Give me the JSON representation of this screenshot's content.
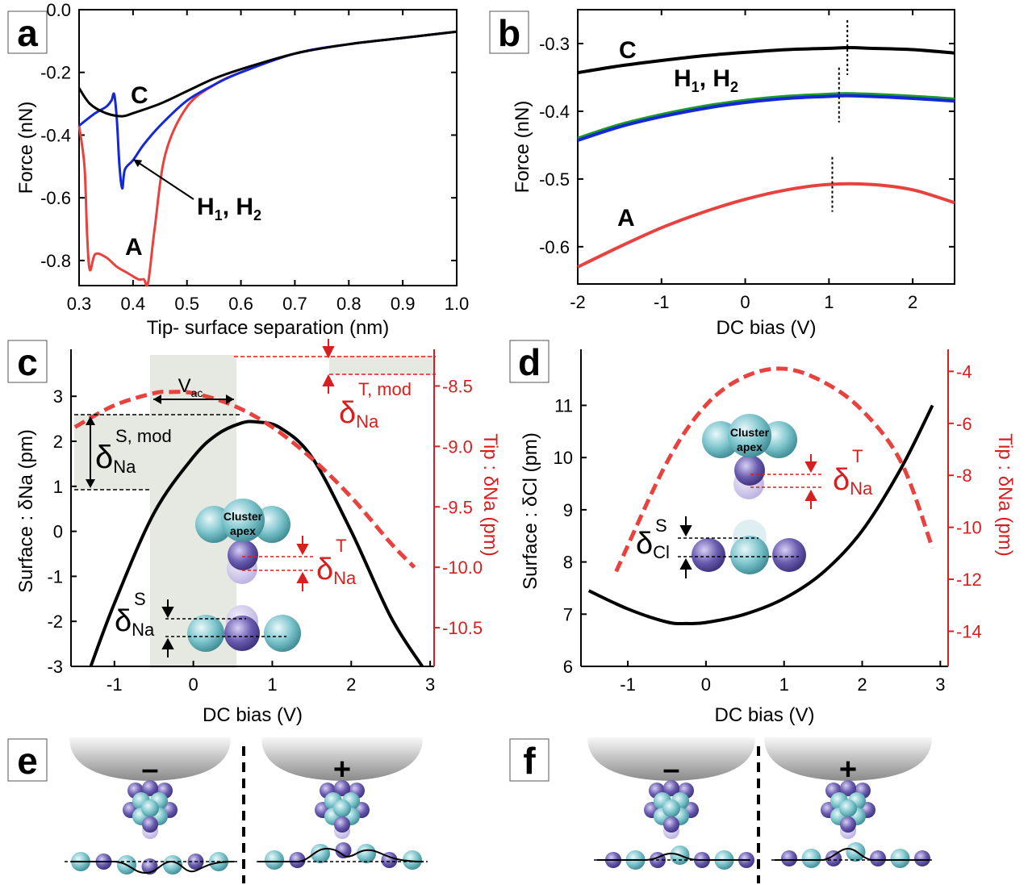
{
  "panels": {
    "a": {
      "label": "a"
    },
    "b": {
      "label": "b"
    },
    "c": {
      "label": "c"
    },
    "d": {
      "label": "d"
    },
    "e": {
      "label": "e"
    },
    "f": {
      "label": "f"
    }
  },
  "annotations": {
    "a": {
      "C": "C",
      "A": "A",
      "H": "H",
      "one": "1",
      "comma": ", ",
      "two": "2"
    },
    "b": {
      "C": "C",
      "A": "A",
      "H": "H",
      "one": "1",
      "comma": ", ",
      "two": "2"
    },
    "c": {
      "vac_v": "V",
      "vac_sub": "ac",
      "delta": "δ",
      "na": "Na",
      "s_mod": "S, mod",
      "t_mod": "T, mod",
      "t": "T",
      "s": "S",
      "cluster1": "Cluster",
      "cluster2": "apex"
    },
    "d": {
      "delta": "δ",
      "na": "Na",
      "cl": "Cl",
      "t": "T",
      "s": "S",
      "cluster1": "Cluster",
      "cluster2": "apex"
    },
    "e": {
      "minus": "–",
      "plus": "+"
    },
    "f": {
      "minus": "–",
      "plus": "+"
    }
  },
  "colors": {
    "black": "#000000",
    "blue": "#1428d8",
    "red": "#e8423f",
    "green": "#1e9a2a",
    "axis_red": "#d81f1f",
    "shade": "#e6e8e2",
    "teal": "#7cc4cc",
    "purple": "#6a5cb0"
  },
  "chart_data": [
    {
      "panel": "a",
      "type": "line",
      "xlabel": "Tip- surface separation (nm)",
      "ylabel": "Force (nN)",
      "xlim": [
        0.3,
        1.0
      ],
      "ylim": [
        -0.88,
        0.0
      ],
      "xticks": [
        "0.3",
        "0.4",
        "0.5",
        "0.6",
        "0.7",
        "0.8",
        "0.9",
        "1.0"
      ],
      "yticks": [
        "0.0",
        "-0.2",
        "-0.4",
        "-0.6",
        "-0.8"
      ],
      "series": [
        {
          "name": "A",
          "color": "#e8423f",
          "x": [
            0.3,
            0.31,
            0.315,
            0.32,
            0.33,
            0.35,
            0.37,
            0.39,
            0.41,
            0.42,
            0.428,
            0.44,
            0.46,
            0.5,
            0.55,
            0.6,
            0.7,
            0.8,
            0.9,
            1.0
          ],
          "y": [
            -0.37,
            -0.5,
            -0.72,
            -0.83,
            -0.78,
            -0.79,
            -0.82,
            -0.84,
            -0.86,
            -0.86,
            -0.87,
            -0.7,
            -0.46,
            -0.31,
            -0.24,
            -0.2,
            -0.14,
            -0.11,
            -0.09,
            -0.07
          ]
        },
        {
          "name": "H1, H2",
          "color": "#1428d8",
          "x": [
            0.3,
            0.33,
            0.35,
            0.36,
            0.365,
            0.37,
            0.375,
            0.38,
            0.385,
            0.4,
            0.42,
            0.45,
            0.5,
            0.55,
            0.6,
            0.7,
            0.8,
            0.9,
            1.0
          ],
          "y": [
            -0.37,
            -0.33,
            -0.31,
            -0.29,
            -0.27,
            -0.35,
            -0.5,
            -0.57,
            -0.51,
            -0.48,
            -0.43,
            -0.37,
            -0.29,
            -0.24,
            -0.2,
            -0.14,
            -0.11,
            -0.09,
            -0.07
          ]
        },
        {
          "name": "C",
          "color": "#000000",
          "x": [
            0.3,
            0.32,
            0.35,
            0.38,
            0.4,
            0.45,
            0.5,
            0.55,
            0.6,
            0.7,
            0.8,
            0.9,
            1.0
          ],
          "y": [
            -0.25,
            -0.3,
            -0.33,
            -0.34,
            -0.33,
            -0.3,
            -0.26,
            -0.22,
            -0.19,
            -0.14,
            -0.11,
            -0.09,
            -0.07
          ]
        }
      ]
    },
    {
      "panel": "b",
      "type": "line",
      "xlabel": "DC bias (V)",
      "ylabel": "Force (nN)",
      "xlim": [
        -2.0,
        2.5
      ],
      "ylim": [
        -0.655,
        -0.25
      ],
      "xticks": [
        "-2",
        "-1",
        "0",
        "1",
        "2"
      ],
      "yticks": [
        "-0.3",
        "-0.4",
        "-0.5",
        "-0.6"
      ],
      "series": [
        {
          "name": "C",
          "color": "#000000",
          "x": [
            -2.0,
            -1.5,
            -1.0,
            -0.5,
            0.0,
            0.5,
            1.0,
            1.25,
            1.5,
            2.0,
            2.5
          ],
          "y": [
            -0.343,
            -0.333,
            -0.325,
            -0.318,
            -0.313,
            -0.309,
            -0.307,
            -0.306,
            -0.307,
            -0.309,
            -0.314
          ]
        },
        {
          "name": "H1",
          "color": "#1e9a2a",
          "x": [
            -2.0,
            -1.5,
            -1.0,
            -0.5,
            0.0,
            0.5,
            1.0,
            1.2,
            1.5,
            2.0,
            2.5
          ],
          "y": [
            -0.44,
            -0.42,
            -0.405,
            -0.393,
            -0.384,
            -0.378,
            -0.375,
            -0.374,
            -0.375,
            -0.378,
            -0.382
          ]
        },
        {
          "name": "H2",
          "color": "#1428d8",
          "x": [
            -2.0,
            -1.5,
            -1.0,
            -0.5,
            0.0,
            0.5,
            1.0,
            1.2,
            1.5,
            2.0,
            2.5
          ],
          "y": [
            -0.443,
            -0.423,
            -0.408,
            -0.396,
            -0.387,
            -0.381,
            -0.378,
            -0.377,
            -0.378,
            -0.381,
            -0.385
          ]
        },
        {
          "name": "A",
          "color": "#e8423f",
          "x": [
            -2.0,
            -1.5,
            -1.0,
            -0.5,
            0.0,
            0.5,
            1.0,
            1.5,
            2.0,
            2.5
          ],
          "y": [
            -0.63,
            -0.6,
            -0.572,
            -0.549,
            -0.53,
            -0.516,
            -0.508,
            -0.508,
            -0.516,
            -0.535
          ]
        }
      ],
      "markers_x": [
        1.22,
        1.12,
        1.04
      ]
    },
    {
      "panel": "c",
      "type": "line",
      "xlabel": "DC bias (V)",
      "ylabel": "Surface : δNa (pm)",
      "y2label": "Tip : δNa (pm)",
      "xlim": [
        -1.55,
        3.05
      ],
      "ylim": [
        -3.0,
        3.9
      ],
      "y2lim": [
        -10.82,
        -8.25
      ],
      "xticks": [
        "-1",
        "0",
        "1",
        "2",
        "3"
      ],
      "yticks": [
        "3",
        "2",
        "1",
        "0",
        "-1",
        "-2",
        "-3"
      ],
      "y2ticks": [
        "-8.5",
        "-9.0",
        "-9.5",
        "-10.0",
        "-10.5"
      ],
      "series": [
        {
          "name": "Surface",
          "color": "#000000",
          "x": [
            -1.3,
            -1.0,
            -0.5,
            0.0,
            0.3,
            0.6,
            0.8,
            1.1,
            1.5,
            2.0,
            2.5,
            2.9
          ],
          "y": [
            -3.0,
            -1.6,
            0.4,
            1.65,
            2.15,
            2.4,
            2.43,
            2.3,
            1.65,
            0.0,
            -1.9,
            -3.0
          ]
        },
        {
          "name": "Tip",
          "color": "#e8423f",
          "dashed": true,
          "x": [
            -1.5,
            -1.0,
            -0.5,
            -0.3,
            0.0,
            0.5,
            1.0,
            1.5,
            2.0,
            2.5,
            2.8
          ],
          "y": [
            -8.84,
            -8.66,
            -8.56,
            -8.55,
            -8.56,
            -8.66,
            -8.84,
            -9.1,
            -9.42,
            -9.8,
            -10.0
          ]
        }
      ]
    },
    {
      "panel": "d",
      "type": "line",
      "xlabel": "DC bias (V)",
      "ylabel": "Surface : δCl (pm)",
      "y2label": "Tip : δNa (pm)",
      "xlim": [
        -1.6,
        3.1
      ],
      "ylim": [
        6.0,
        11.95
      ],
      "y2lim": [
        -15.35,
        -3.4
      ],
      "xticks": [
        "-1",
        "0",
        "1",
        "2",
        "3"
      ],
      "yticks": [
        "11",
        "10",
        "9",
        "8",
        "7",
        "6"
      ],
      "y2ticks": [
        "-4",
        "-6",
        "-8",
        "-10",
        "-12",
        "-14"
      ],
      "series": [
        {
          "name": "Surface",
          "color": "#000000",
          "x": [
            -1.5,
            -1.0,
            -0.5,
            -0.25,
            0.0,
            0.5,
            1.0,
            1.5,
            2.0,
            2.5,
            2.9
          ],
          "y": [
            7.45,
            7.1,
            6.85,
            6.82,
            6.84,
            7.0,
            7.3,
            7.8,
            8.6,
            9.8,
            11.0
          ]
        },
        {
          "name": "Tip",
          "color": "#e8423f",
          "dashed": true,
          "x": [
            -1.15,
            -0.5,
            0.0,
            0.5,
            1.0,
            1.5,
            2.0,
            2.5,
            2.9
          ],
          "y": [
            -11.7,
            -7.5,
            -5.3,
            -4.2,
            -3.9,
            -4.4,
            -5.5,
            -7.5,
            -10.8
          ]
        }
      ]
    }
  ]
}
